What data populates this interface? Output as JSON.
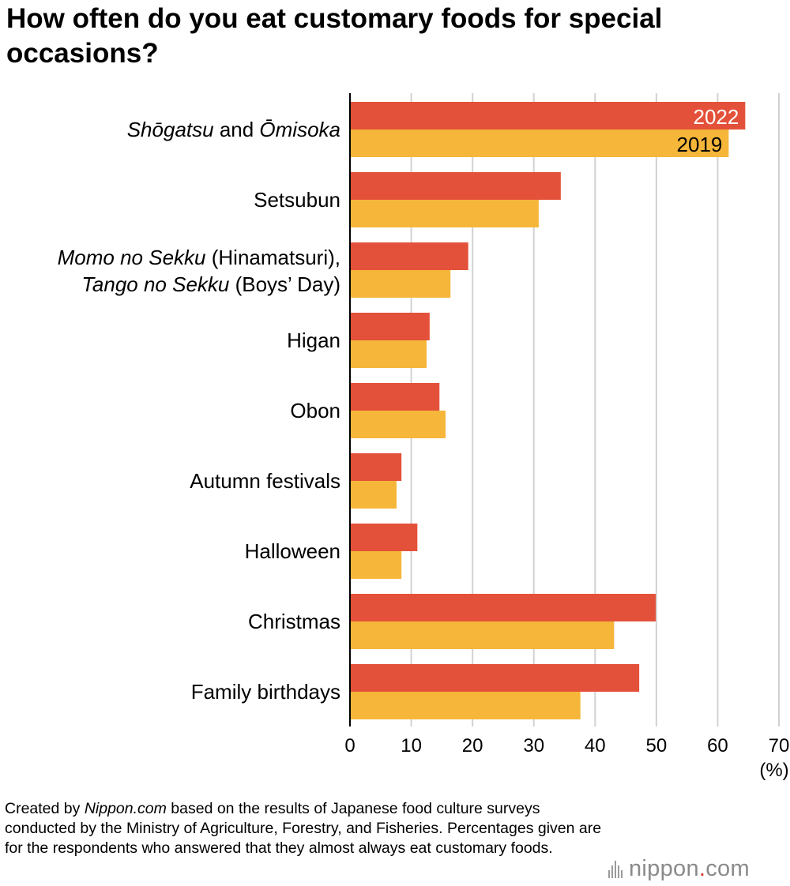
{
  "title": "How often do you eat customary foods for special occasions?",
  "footnote": {
    "pre": "Created by ",
    "source": "Nippon.com",
    "post": " based on the results of Japanese food culture surveys conducted by the Ministry of Agriculture, Forestry, and Fisheries. Percentages given are for the respondents who answered that they almost always eat customary foods."
  },
  "logo": {
    "left": "nippon",
    "dot": ".",
    "right": "com"
  },
  "colors": {
    "series_2022": "#e4513a",
    "series_2019": "#f5b63a",
    "grid": "#d2d2d2",
    "axis": "#000000"
  },
  "chart_data": {
    "type": "bar",
    "orientation": "horizontal",
    "title": "How often do you eat customary foods for special occasions?",
    "xlabel": "(%)",
    "xlim": [
      0,
      70
    ],
    "xticks": [
      0,
      10,
      20,
      30,
      40,
      50,
      60,
      70
    ],
    "grid": true,
    "categories": [
      [
        {
          "t": "Shōgatsu",
          "i": true
        },
        {
          "t": " and ",
          "i": false
        },
        {
          "t": "Ōmisoka",
          "i": true
        }
      ],
      [
        {
          "t": "Setsubun",
          "i": false
        }
      ],
      [
        {
          "t": "Momo no Sekku",
          "i": true
        },
        {
          "t": " (Hinamatsuri),",
          "i": false
        }
      ],
      [
        {
          "t": "Higan",
          "i": false
        }
      ],
      [
        {
          "t": "Obon",
          "i": false
        }
      ],
      [
        {
          "t": "Autumn festivals",
          "i": false
        }
      ],
      [
        {
          "t": "Halloween",
          "i": false
        }
      ],
      [
        {
          "t": "Christmas",
          "i": false
        }
      ],
      [
        {
          "t": "Family birthdays",
          "i": false
        }
      ]
    ],
    "category_second_lines": {
      "2": [
        {
          "t": "Tango no Sekku",
          "i": true
        },
        {
          "t": " (Boys’ Day)",
          "i": false
        }
      ]
    },
    "series": [
      {
        "name": "2022",
        "color": "#e4513a",
        "values": [
          64.5,
          34.4,
          19.3,
          13.0,
          14.6,
          8.4,
          11.0,
          49.9,
          47.2
        ]
      },
      {
        "name": "2019",
        "color": "#f5b63a",
        "values": [
          61.8,
          30.8,
          16.4,
          12.5,
          15.6,
          7.6,
          8.4,
          43.1,
          37.6
        ]
      }
    ]
  }
}
